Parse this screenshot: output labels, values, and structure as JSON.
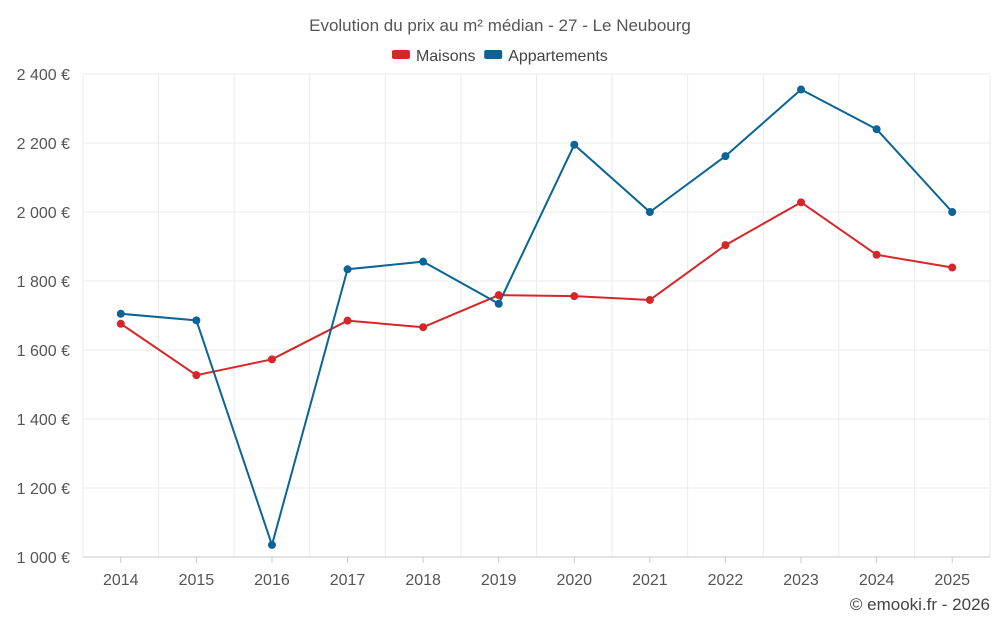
{
  "chart_data": {
    "type": "line",
    "title": "Evolution du prix au m² médian - 27 - Le Neubourg",
    "xlabel": "",
    "ylabel": "",
    "categories": [
      "2014",
      "2015",
      "2016",
      "2017",
      "2018",
      "2019",
      "2020",
      "2021",
      "2022",
      "2023",
      "2024",
      "2025"
    ],
    "series": [
      {
        "name": "Maisons",
        "color": "#d62728",
        "values": [
          1676,
          1527,
          1573,
          1685,
          1666,
          1759,
          1756,
          1745,
          1904,
          2028,
          1876,
          1839
        ]
      },
      {
        "name": "Appartements",
        "color": "#0a6496",
        "values": [
          1705,
          1686,
          1035,
          1834,
          1856,
          1734,
          2195,
          2000,
          2162,
          2355,
          2240,
          2000
        ]
      }
    ],
    "ylim": [
      1000,
      2400
    ],
    "yticks": [
      1000,
      1200,
      1400,
      1600,
      1800,
      2000,
      2200,
      2400
    ],
    "ytick_labels": [
      "1 000 €",
      "1 200 €",
      "1 400 €",
      "1 600 €",
      "1 800 €",
      "2 000 €",
      "2 200 €",
      "2 400 €"
    ],
    "grid": true,
    "legend_position": "top-center"
  },
  "credit": "© emooki.fr - 2026"
}
